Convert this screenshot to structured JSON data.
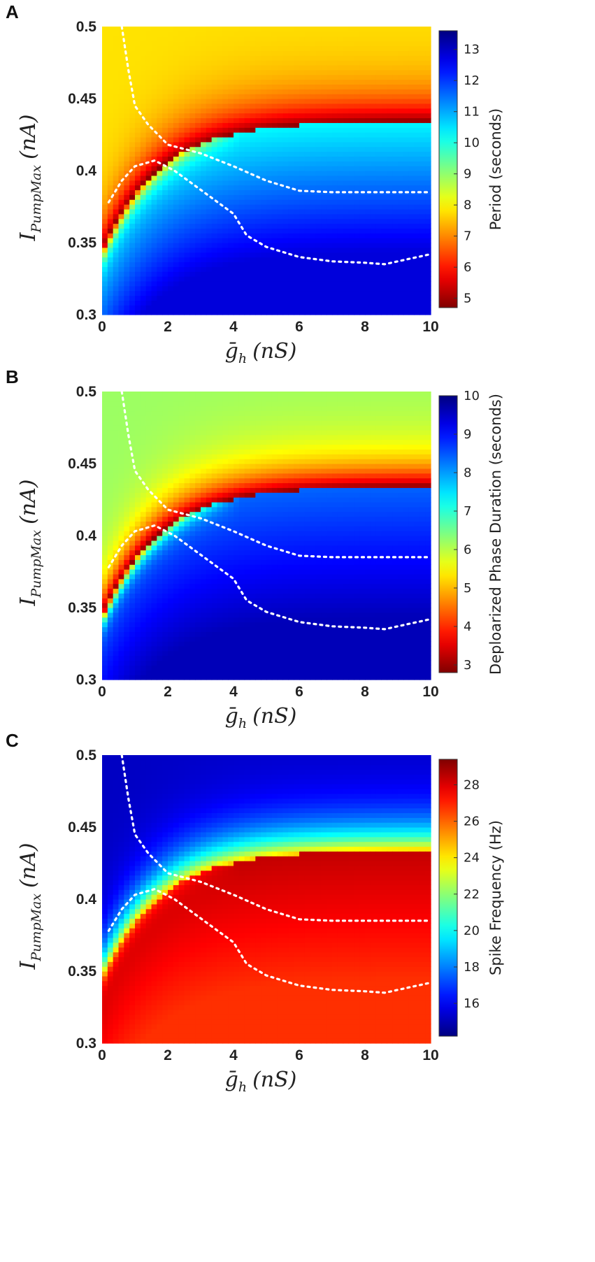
{
  "chart_data": [
    {
      "panel": "A",
      "type": "heatmap",
      "xlabel": "ḡh (nS)",
      "xlabel_main": "ḡ",
      "xlabel_sub": "h",
      "xlabel_units": "(nS)",
      "ylabel": "IPumpMax (nA)",
      "ylabel_main": "I",
      "ylabel_sub": "PumpMax",
      "ylabel_units": "(nA)",
      "xlim": [
        0,
        10
      ],
      "ylim": [
        0.3,
        0.5
      ],
      "x_ticks": [
        "0",
        "2",
        "4",
        "6",
        "8",
        "10"
      ],
      "y_ticks": [
        "0.3",
        "0.35",
        "0.4",
        "0.45",
        "0.5"
      ],
      "colorbar": {
        "label": "Period (seconds)",
        "range": [
          4.7,
          13.6
        ],
        "ticks": [
          "5",
          "6",
          "7",
          "8",
          "9",
          "10",
          "11",
          "12",
          "13"
        ],
        "colormap": "jet",
        "reversed": true
      },
      "regions": {
        "top_value": 7.8,
        "bottom_value": 12.8,
        "plateau_value": 10.3,
        "ridge_value": 4.8
      }
    },
    {
      "panel": "B",
      "type": "heatmap",
      "xlabel": "ḡh (nS)",
      "xlabel_main": "ḡ",
      "xlabel_sub": "h",
      "xlabel_units": "(nS)",
      "ylabel": "IPumpMax (nA)",
      "ylabel_main": "I",
      "ylabel_sub": "PumpMax",
      "ylabel_units": "(nA)",
      "xlim": [
        0,
        10
      ],
      "ylim": [
        0.3,
        0.5
      ],
      "x_ticks": [
        "0",
        "2",
        "4",
        "6",
        "8",
        "10"
      ],
      "y_ticks": [
        "0.3",
        "0.35",
        "0.4",
        "0.45",
        "0.5"
      ],
      "colorbar": {
        "label": "Deploarized Phase Duration (seconds)",
        "range": [
          2.8,
          10
        ],
        "ticks": [
          "3",
          "4",
          "5",
          "6",
          "7",
          "8",
          "9",
          "10"
        ],
        "colormap": "jet",
        "reversed": true
      },
      "regions": {
        "top_value": 6.2,
        "bottom_value": 9.6,
        "plateau_value": 8.4,
        "ridge_value": 2.9
      }
    },
    {
      "panel": "C",
      "type": "heatmap",
      "xlabel": "ḡh (nS)",
      "xlabel_main": "ḡ",
      "xlabel_sub": "h",
      "xlabel_units": "(nS)",
      "ylabel": "IPumpMax (nA)",
      "ylabel_main": "I",
      "ylabel_sub": "PumpMax",
      "ylabel_units": "(nA)",
      "xlim": [
        0,
        10
      ],
      "ylim": [
        0.3,
        0.5
      ],
      "x_ticks": [
        "0",
        "2",
        "4",
        "6",
        "8",
        "10"
      ],
      "y_ticks": [
        "0.3",
        "0.35",
        "0.4",
        "0.45",
        "0.5"
      ],
      "colorbar": {
        "label": "Spike Frequency (Hz)",
        "range": [
          14.2,
          29.4
        ],
        "ticks": [
          "16",
          "18",
          "20",
          "22",
          "24",
          "26",
          "28"
        ],
        "colormap": "jet",
        "reversed": false
      },
      "regions": {
        "top_value": 15.2,
        "bottom_value": 26.8,
        "plateau_value": 28.4,
        "ridge_value": 24.5
      }
    }
  ],
  "overlay_curves": {
    "description_free": true,
    "upper_branch": [
      [
        0.6,
        0.5
      ],
      [
        0.8,
        0.47
      ],
      [
        1.0,
        0.445
      ],
      [
        1.4,
        0.432
      ],
      [
        2.0,
        0.418
      ],
      [
        3.0,
        0.412
      ],
      [
        4.0,
        0.403
      ],
      [
        5.0,
        0.393
      ],
      [
        6.0,
        0.386
      ],
      [
        7.0,
        0.385
      ],
      [
        8.0,
        0.385
      ],
      [
        9.0,
        0.385
      ],
      [
        10.0,
        0.385
      ]
    ],
    "lower_branch": [
      [
        0.2,
        0.378
      ],
      [
        0.6,
        0.393
      ],
      [
        1.0,
        0.403
      ],
      [
        1.6,
        0.407
      ],
      [
        2.2,
        0.4
      ],
      [
        2.8,
        0.39
      ],
      [
        3.4,
        0.38
      ],
      [
        4.0,
        0.37
      ],
      [
        4.4,
        0.355
      ],
      [
        5.0,
        0.347
      ],
      [
        6.0,
        0.34
      ],
      [
        7.0,
        0.337
      ],
      [
        8.0,
        0.336
      ],
      [
        8.6,
        0.335
      ],
      [
        9.2,
        0.338
      ],
      [
        10.0,
        0.342
      ]
    ]
  }
}
